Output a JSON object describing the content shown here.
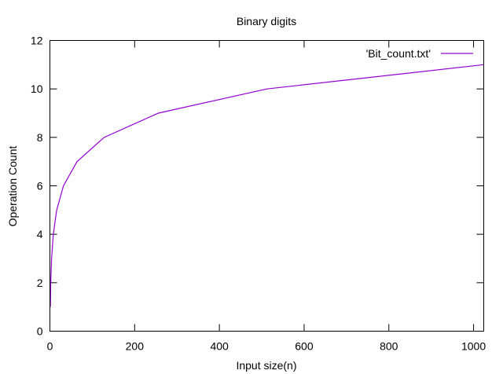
{
  "chart_data": {
    "type": "line",
    "title": "Binary digits",
    "xlabel": "Input size(n)",
    "ylabel": "Operation Count",
    "xlim": [
      0,
      1024
    ],
    "ylim": [
      0,
      12
    ],
    "xticks": [
      0,
      200,
      400,
      600,
      800,
      1000
    ],
    "yticks": [
      0,
      2,
      4,
      6,
      8,
      10,
      12
    ],
    "grid": false,
    "legend_position": "top-right",
    "series": [
      {
        "name": "'Bit_count.txt'",
        "color": "#9400d3",
        "x": [
          1,
          2,
          4,
          8,
          16,
          32,
          64,
          128,
          256,
          512,
          1024
        ],
        "y": [
          1,
          2,
          3,
          4,
          5,
          6,
          7,
          8,
          9,
          10,
          11
        ]
      }
    ]
  }
}
